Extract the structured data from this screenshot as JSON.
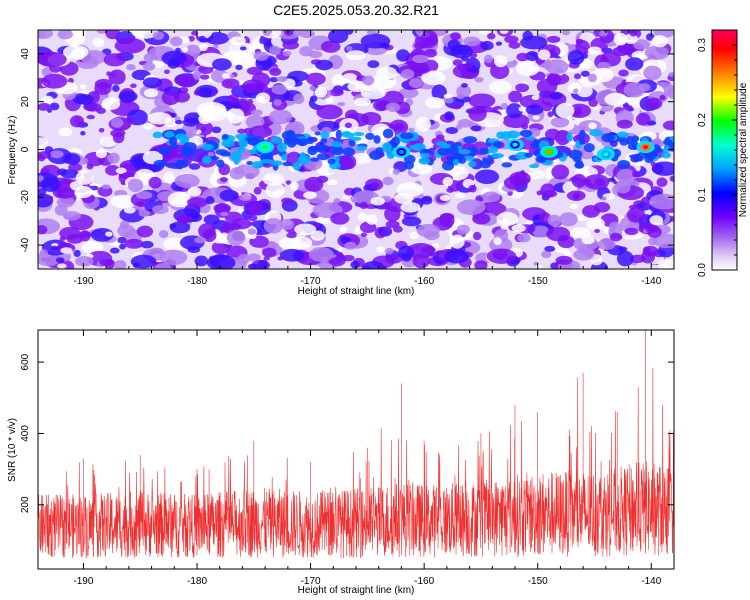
{
  "title": "C2E5.2025.053.20.32.R21",
  "chart_data": [
    {
      "type": "heatmap",
      "xlabel": "Height of straight line (km)",
      "ylabel": "Frequency (Hz)",
      "xlim": [
        -194,
        -138
      ],
      "ylim": [
        -50,
        50
      ],
      "x_ticks": [
        -190,
        -180,
        -170,
        -160,
        -150,
        -140
      ],
      "y_ticks": [
        -40,
        -20,
        0,
        20,
        40
      ],
      "colorbar": {
        "label": "Normalized spectral amplitude",
        "range": [
          0,
          0.32
        ],
        "ticks": [
          0.0,
          0.1,
          0.2,
          0.3
        ],
        "colormap": [
          "#ffffff",
          "#dcc8f5",
          "#a060f0",
          "#7000ff",
          "#0000ff",
          "#00a0ff",
          "#00ffd0",
          "#00ff00",
          "#ffff00",
          "#ff8000",
          "#ff0000",
          "#ff0060"
        ]
      },
      "features": [
        {
          "x": -174,
          "y": 1,
          "value": 0.2
        },
        {
          "x": -162,
          "y": -1,
          "value": 0.15
        },
        {
          "x": -152,
          "y": 2,
          "value": 0.16
        },
        {
          "x": -149,
          "y": -1,
          "value": 0.26
        },
        {
          "x": -144,
          "y": -2,
          "value": 0.18
        },
        {
          "x": -140.5,
          "y": 1,
          "value": 0.32
        }
      ]
    },
    {
      "type": "line",
      "xlabel": "Height of straight line (km)",
      "ylabel": "SNR (10 * v/v)",
      "xlim": [
        -194,
        -138
      ],
      "ylim": [
        20,
        690
      ],
      "x_ticks": [
        -190,
        -180,
        -170,
        -160,
        -150,
        -140
      ],
      "y_ticks": [
        200,
        400,
        600
      ],
      "series": [
        {
          "color": "#f03030",
          "envelope": [
            {
              "x": -194,
              "max": 250,
              "min": 40,
              "mean": 140
            },
            {
              "x": -190,
              "max": 330,
              "min": 40,
              "mean": 140
            },
            {
              "x": -185,
              "max": 340,
              "min": 40,
              "mean": 145
            },
            {
              "x": -180,
              "max": 300,
              "min": 40,
              "mean": 140
            },
            {
              "x": -175,
              "max": 380,
              "min": 40,
              "mean": 150
            },
            {
              "x": -170,
              "max": 320,
              "min": 40,
              "mean": 145
            },
            {
              "x": -165,
              "max": 360,
              "min": 40,
              "mean": 150
            },
            {
              "x": -162,
              "max": 540,
              "min": 40,
              "mean": 160
            },
            {
              "x": -160,
              "max": 380,
              "min": 40,
              "mean": 155
            },
            {
              "x": -155,
              "max": 400,
              "min": 40,
              "mean": 160
            },
            {
              "x": -152,
              "max": 480,
              "min": 40,
              "mean": 170
            },
            {
              "x": -150,
              "max": 460,
              "min": 40,
              "mean": 175
            },
            {
              "x": -146,
              "max": 570,
              "min": 40,
              "mean": 175
            },
            {
              "x": -143,
              "max": 460,
              "min": 40,
              "mean": 180
            },
            {
              "x": -140.5,
              "max": 690,
              "min": 40,
              "mean": 190
            },
            {
              "x": -139,
              "max": 480,
              "min": 40,
              "mean": 185
            },
            {
              "x": -138,
              "max": 430,
              "min": 40,
              "mean": 180
            }
          ]
        }
      ]
    }
  ]
}
